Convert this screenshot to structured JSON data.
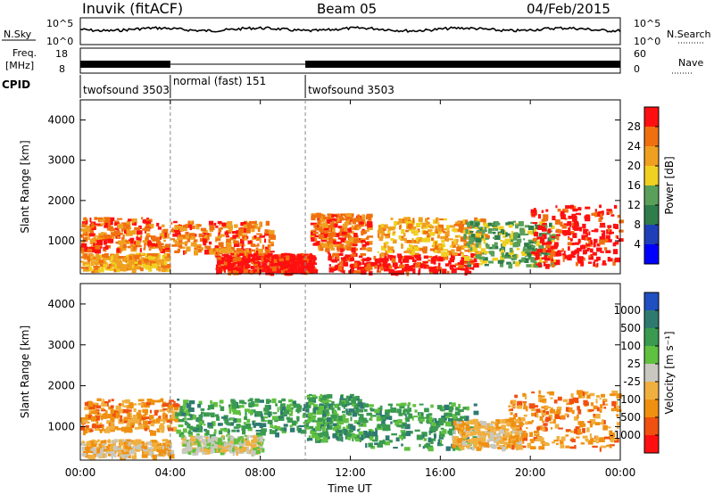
{
  "header": {
    "station": "Inuvik (fitACF)",
    "beam": "Beam 05",
    "date": "04/Feb/2015"
  },
  "top_panels": {
    "nsky_label": "N.Sky",
    "nsky_ticks": [
      "10^5",
      "10^0"
    ],
    "nsearch_label": "N.Search",
    "nsearch_ticks": [
      "10^5",
      "10^0"
    ],
    "freq_label_1": "Freq.",
    "freq_label_2": "[MHz]",
    "freq_ticks": [
      "18",
      "8"
    ],
    "nave_label": "Nave",
    "nave_ticks": [
      "60",
      "0"
    ],
    "cpid_label": "CPID",
    "cpid_segments": [
      {
        "label": "twofsound 3503",
        "start_hour": 0,
        "end_hour": 4
      },
      {
        "label": "normal (fast) 151",
        "start_hour": 4,
        "end_hour": 10
      },
      {
        "label": "twofsound 3503",
        "start_hour": 10,
        "end_hour": 24
      }
    ]
  },
  "chart_data": [
    {
      "type": "heatmap",
      "name": "power",
      "ylabel": "Slant Range [km]",
      "y_ticks": [
        "1000",
        "2000",
        "3000",
        "4000"
      ],
      "ylim": [
        180,
        4500
      ],
      "xlim_hours": [
        0,
        24
      ],
      "colorbar_label": "Power [dB]",
      "colorbar_ticks": [
        "28",
        "24",
        "20",
        "16",
        "12",
        "8",
        "4"
      ],
      "colorbar_colors": [
        "#0000ff",
        "#1f3fb8",
        "#2f7d4a",
        "#5aa05a",
        "#f0d020",
        "#f0a020",
        "#f07010",
        "#ff1010"
      ],
      "bands": [
        {
          "start_hour": 0.0,
          "end_hour": 3.8,
          "range_min": 800,
          "range_max": 1600,
          "level": 6
        },
        {
          "start_hour": 0.0,
          "end_hour": 3.8,
          "range_min": 300,
          "range_max": 700,
          "level": 5
        },
        {
          "start_hour": 4.0,
          "end_hour": 8.5,
          "range_min": 700,
          "range_max": 1500,
          "level": 6
        },
        {
          "start_hour": 6.0,
          "end_hour": 8.8,
          "range_min": 250,
          "range_max": 700,
          "level": 7
        },
        {
          "start_hour": 8.8,
          "end_hour": 10.3,
          "range_min": 250,
          "range_max": 700,
          "level": 7
        },
        {
          "start_hour": 10.2,
          "end_hour": 12.8,
          "range_min": 800,
          "range_max": 1700,
          "level": 6
        },
        {
          "start_hour": 11.0,
          "end_hour": 17.5,
          "range_min": 250,
          "range_max": 700,
          "level": 7
        },
        {
          "start_hour": 13.2,
          "end_hour": 18.0,
          "range_min": 700,
          "range_max": 1600,
          "level": 5
        },
        {
          "start_hour": 17.0,
          "end_hour": 21.0,
          "range_min": 400,
          "range_max": 1500,
          "level": 3
        },
        {
          "start_hour": 20.0,
          "end_hour": 24.0,
          "range_min": 400,
          "range_max": 1900,
          "level": 7
        }
      ]
    },
    {
      "type": "heatmap",
      "name": "velocity",
      "ylabel": "Slant Range [km]",
      "y_ticks": [
        "1000",
        "2000",
        "3000",
        "4000"
      ],
      "ylim": [
        180,
        4500
      ],
      "xlim_hours": [
        0,
        24
      ],
      "colorbar_label": "Velocity [m s⁻¹]",
      "colorbar_ticks": [
        "1000",
        "500",
        "100",
        "25",
        "-25",
        "-100",
        "-500",
        "-1000"
      ],
      "colorbar_colors": [
        "#ff1010",
        "#f05010",
        "#f09010",
        "#f0b040",
        "#c8c8c0",
        "#60c040",
        "#3a9a50",
        "#2f7a70",
        "#1f4fc0"
      ],
      "bands": [
        {
          "start_hour": 0.0,
          "end_hour": 4.2,
          "range_min": 900,
          "range_max": 1700,
          "level": 2
        },
        {
          "start_hour": 0.0,
          "end_hour": 4.0,
          "range_min": 300,
          "range_max": 700,
          "level": 3
        },
        {
          "start_hour": 4.2,
          "end_hour": 10.0,
          "range_min": 800,
          "range_max": 1700,
          "level": 6
        },
        {
          "start_hour": 4.5,
          "end_hour": 8.0,
          "range_min": 400,
          "range_max": 800,
          "level": 4
        },
        {
          "start_hour": 10.0,
          "end_hour": 12.5,
          "range_min": 700,
          "range_max": 1800,
          "level": 6
        },
        {
          "start_hour": 12.5,
          "end_hour": 17.5,
          "range_min": 500,
          "range_max": 1600,
          "level": 6
        },
        {
          "start_hour": 16.5,
          "end_hour": 19.5,
          "range_min": 500,
          "range_max": 1200,
          "level": 3
        },
        {
          "start_hour": 19.0,
          "end_hour": 24.0,
          "range_min": 500,
          "range_max": 1900,
          "level": 2
        }
      ]
    }
  ],
  "x_axis": {
    "ticks": [
      "00:00",
      "04:00",
      "08:00",
      "12:00",
      "16:00",
      "20:00",
      "00:00"
    ],
    "label": "Time UT"
  }
}
